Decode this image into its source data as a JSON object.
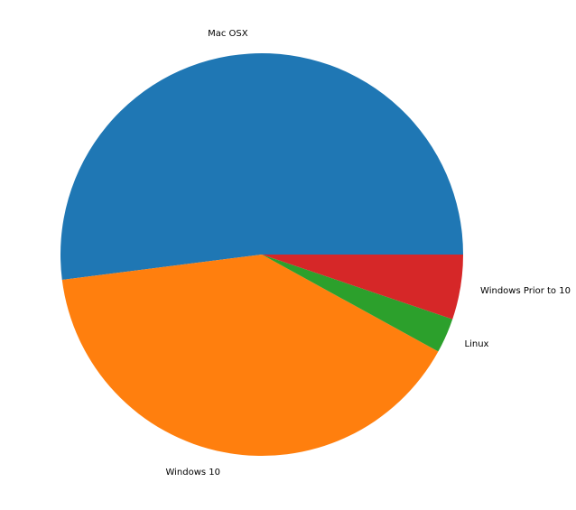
{
  "chart_data": {
    "type": "pie",
    "title": "",
    "labels": [
      "Mac OSX",
      "Windows 10",
      "Linux",
      "Windows Prior to 10"
    ],
    "values": [
      52,
      40,
      2.8,
      5.2
    ],
    "colors": [
      "#1f77b4",
      "#ff7f0e",
      "#2ca02c",
      "#d62728"
    ],
    "start_angle_deg": 0,
    "direction": "counterclockwise"
  }
}
